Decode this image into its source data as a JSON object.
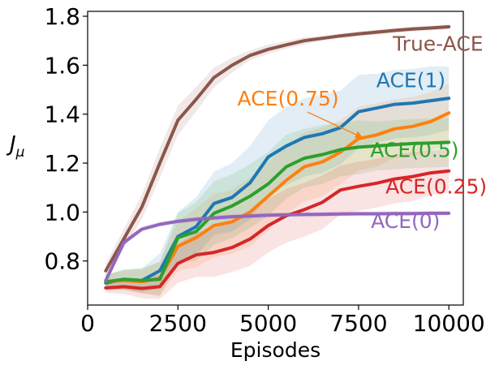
{
  "chart_data": {
    "type": "line",
    "title": "",
    "xlabel": "Episodes",
    "ylabel": "J",
    "ylabel_subscript": "μ",
    "xlim": [
      0,
      10400
    ],
    "ylim": [
      0.62,
      1.82
    ],
    "xticks": [
      0,
      2500,
      5000,
      7500,
      10000
    ],
    "xtick_labels": [
      "0",
      "2500",
      "5000",
      "7500",
      "10000"
    ],
    "yticks": [
      0.8,
      1.0,
      1.2,
      1.4,
      1.6,
      1.8
    ],
    "ytick_labels": [
      "0.8",
      "1.0",
      "1.2",
      "1.4",
      "1.6",
      "1.8"
    ],
    "grid": false,
    "legend": "inline labels next to each line",
    "x": [
      500,
      1000,
      1500,
      2000,
      2500,
      3000,
      3500,
      4000,
      4500,
      5000,
      5500,
      6000,
      6500,
      7000,
      7500,
      8000,
      8500,
      9000,
      9500,
      10000
    ],
    "series": [
      {
        "name": "True-ACE",
        "color": "#8c564b",
        "values": [
          0.76,
          0.89,
          1.02,
          1.2,
          1.375,
          1.46,
          1.55,
          1.6,
          1.64,
          1.665,
          1.683,
          1.7,
          1.71,
          1.72,
          1.728,
          1.735,
          1.742,
          1.748,
          1.752,
          1.757
        ],
        "band_width": [
          0.03,
          0.04,
          0.05,
          0.06,
          0.06,
          0.05,
          0.04,
          0.03,
          0.02,
          0.02,
          0.015,
          0.015,
          0.01,
          0.01,
          0.01,
          0.01,
          0.01,
          0.01,
          0.01,
          0.01
        ]
      },
      {
        "name": "ACE(1)",
        "color": "#1f77b4",
        "values": [
          0.71,
          0.725,
          0.72,
          0.76,
          0.9,
          0.94,
          1.035,
          1.06,
          1.12,
          1.225,
          1.27,
          1.305,
          1.32,
          1.345,
          1.41,
          1.425,
          1.44,
          1.445,
          1.455,
          1.465
        ],
        "band_width": [
          0.03,
          0.04,
          0.05,
          0.07,
          0.1,
          0.12,
          0.13,
          0.14,
          0.15,
          0.15,
          0.16,
          0.16,
          0.16,
          0.15,
          0.15,
          0.14,
          0.14,
          0.14,
          0.14,
          0.13
        ]
      },
      {
        "name": "ACE(0.75)",
        "color": "#ff7f0e",
        "values": [
          0.715,
          0.72,
          0.715,
          0.73,
          0.86,
          0.895,
          0.945,
          0.96,
          1.0,
          1.065,
          1.13,
          1.185,
          1.205,
          1.245,
          1.3,
          1.315,
          1.34,
          1.35,
          1.37,
          1.405
        ],
        "band_width": [
          0.03,
          0.04,
          0.05,
          0.07,
          0.1,
          0.12,
          0.13,
          0.13,
          0.14,
          0.14,
          0.14,
          0.14,
          0.14,
          0.13,
          0.13,
          0.13,
          0.12,
          0.12,
          0.12,
          0.12
        ]
      },
      {
        "name": "ACE(0.5)",
        "color": "#2ca02c",
        "values": [
          0.715,
          0.725,
          0.72,
          0.725,
          0.895,
          0.92,
          0.995,
          1.025,
          1.065,
          1.115,
          1.185,
          1.22,
          1.235,
          1.255,
          1.265,
          1.27,
          1.275,
          1.28,
          1.282,
          1.285
        ],
        "band_width": [
          0.03,
          0.04,
          0.05,
          0.07,
          0.1,
          0.12,
          0.13,
          0.13,
          0.13,
          0.13,
          0.13,
          0.12,
          0.12,
          0.11,
          0.11,
          0.1,
          0.1,
          0.1,
          0.1,
          0.1
        ]
      },
      {
        "name": "ACE(0.25)",
        "color": "#d62728",
        "values": [
          0.69,
          0.695,
          0.688,
          0.695,
          0.79,
          0.825,
          0.835,
          0.855,
          0.89,
          0.945,
          0.985,
          1.01,
          1.04,
          1.09,
          1.105,
          1.118,
          1.135,
          1.145,
          1.16,
          1.168
        ],
        "band_width": [
          0.02,
          0.03,
          0.04,
          0.05,
          0.08,
          0.09,
          0.1,
          0.1,
          0.11,
          0.11,
          0.11,
          0.11,
          0.11,
          0.1,
          0.1,
          0.1,
          0.1,
          0.1,
          0.09,
          0.09
        ]
      },
      {
        "name": "ACE(0)",
        "color": "#9467bd",
        "values": [
          0.72,
          0.875,
          0.93,
          0.95,
          0.962,
          0.97,
          0.976,
          0.981,
          0.984,
          0.987,
          0.989,
          0.99,
          0.991,
          0.992,
          0.993,
          0.993,
          0.994,
          0.994,
          0.995,
          0.995
        ],
        "band_width": [
          0.01,
          0.01,
          0.01,
          0.01,
          0.01,
          0.01,
          0.01,
          0.01,
          0.01,
          0.01,
          0.01,
          0.01,
          0.01,
          0.01,
          0.01,
          0.01,
          0.01,
          0.01,
          0.01,
          0.01
        ]
      }
    ],
    "annotations": [
      {
        "text": "True-ACE",
        "series": "True-ACE",
        "at": [
          9700,
          1.66
        ]
      },
      {
        "text": "ACE(1)",
        "series": "ACE(1)",
        "at": [
          8950,
          1.51
        ]
      },
      {
        "text": "ACE(0.75)",
        "series": "ACE(0.75)",
        "at": [
          5550,
          1.435
        ],
        "arrow_to": [
          7600,
          1.305
        ]
      },
      {
        "text": "ACE(0.5)",
        "series": "ACE(0.5)",
        "at": [
          9050,
          1.225
        ]
      },
      {
        "text": "ACE(0.25)",
        "series": "ACE(0.25)",
        "at": [
          9650,
          1.075
        ]
      },
      {
        "text": "ACE(0)",
        "series": "ACE(0)",
        "at": [
          8800,
          0.935
        ]
      }
    ]
  }
}
